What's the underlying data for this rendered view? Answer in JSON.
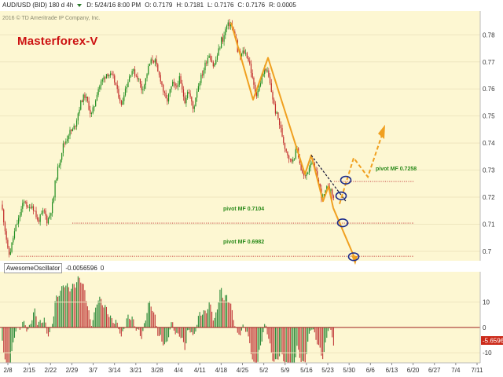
{
  "header": {
    "symbol": "AUD/USD (BID) 180 d 4h",
    "date": "D: 5/24/16 8:00 PM",
    "open": "O: 0.7179",
    "high": "H: 0.7181",
    "low": "L: 0.7176",
    "close": "C: 0.7176",
    "range": "R: 0.0005"
  },
  "copyright": "2016 © TD Ameritrade IP Company, Inc.",
  "brand": "Masterforex-V",
  "oscillator": {
    "name": "AwesomeOscillator",
    "value": "-0.0056596",
    "zero": "0"
  },
  "chart_data": {
    "type": "candlestick",
    "price_axis": {
      "range": [
        0.6965,
        0.7888
      ],
      "ticks": [
        0.78,
        0.77,
        0.76,
        0.75,
        0.74,
        0.73,
        0.72,
        0.71,
        0.7
      ],
      "tick_labels": [
        "0.78",
        "0.77",
        "0.76",
        "0.75",
        "0.74",
        "0.73",
        "0.72",
        "0.71",
        "0.7"
      ]
    },
    "x_axis": {
      "tick_labels": [
        "2/8",
        "2/15",
        "2/22",
        "2/29",
        "3/7",
        "3/14",
        "3/21",
        "3/28",
        "4/4",
        "4/11",
        "4/18",
        "4/25",
        "5/2",
        "5/9",
        "5/16",
        "5/23",
        "5/30",
        "6/6",
        "6/13",
        "6/20",
        "6/27",
        "7/4",
        "7/11"
      ]
    },
    "price_path": [
      [
        0,
        0.7215
      ],
      [
        4,
        0.713
      ],
      [
        8,
        0.705
      ],
      [
        10,
        0.7
      ],
      [
        12,
        0.6985
      ],
      [
        16,
        0.704
      ],
      [
        20,
        0.709
      ],
      [
        24,
        0.712
      ],
      [
        28,
        0.7165
      ],
      [
        32,
        0.719
      ],
      [
        36,
        0.715
      ],
      [
        40,
        0.7175
      ],
      [
        44,
        0.715
      ],
      [
        48,
        0.711
      ],
      [
        52,
        0.713
      ],
      [
        56,
        0.715
      ],
      [
        60,
        0.711
      ],
      [
        64,
        0.714
      ],
      [
        68,
        0.719
      ],
      [
        70,
        0.725
      ],
      [
        74,
        0.731
      ],
      [
        78,
        0.736
      ],
      [
        80,
        0.739
      ],
      [
        84,
        0.741
      ],
      [
        88,
        0.744
      ],
      [
        92,
        0.7445
      ],
      [
        96,
        0.747
      ],
      [
        100,
        0.752
      ],
      [
        104,
        0.756
      ],
      [
        108,
        0.7575
      ],
      [
        112,
        0.7545
      ],
      [
        116,
        0.75
      ],
      [
        120,
        0.754
      ],
      [
        124,
        0.7595
      ],
      [
        128,
        0.762
      ],
      [
        132,
        0.764
      ],
      [
        136,
        0.766
      ],
      [
        140,
        0.765
      ],
      [
        144,
        0.764
      ],
      [
        148,
        0.761
      ],
      [
        150,
        0.7575
      ],
      [
        152,
        0.758
      ],
      [
        154,
        0.753
      ],
      [
        158,
        0.759
      ],
      [
        162,
        0.762
      ],
      [
        166,
        0.766
      ],
      [
        168,
        0.767
      ],
      [
        172,
        0.7655
      ],
      [
        176,
        0.764
      ],
      [
        180,
        0.76
      ],
      [
        184,
        0.762
      ],
      [
        188,
        0.767
      ],
      [
        190,
        0.769
      ],
      [
        194,
        0.771
      ],
      [
        198,
        0.77
      ],
      [
        200,
        0.7665
      ],
      [
        204,
        0.764
      ],
      [
        208,
        0.759
      ],
      [
        212,
        0.755
      ],
      [
        216,
        0.759
      ],
      [
        220,
        0.762
      ],
      [
        224,
        0.76
      ],
      [
        228,
        0.764
      ],
      [
        232,
        0.759
      ],
      [
        236,
        0.755
      ],
      [
        238,
        0.76
      ],
      [
        242,
        0.757
      ],
      [
        246,
        0.752
      ],
      [
        250,
        0.759
      ],
      [
        254,
        0.763
      ],
      [
        258,
        0.766
      ],
      [
        262,
        0.77
      ],
      [
        266,
        0.773
      ],
      [
        270,
        0.77
      ],
      [
        272,
        0.768
      ],
      [
        276,
        0.772
      ],
      [
        280,
        0.776
      ],
      [
        282,
        0.779
      ],
      [
        284,
        0.778
      ],
      [
        286,
        0.781
      ],
      [
        288,
        0.783
      ],
      [
        292,
        0.784
      ],
      [
        294,
        0.784
      ],
      [
        296,
        0.7815
      ],
      [
        300,
        0.779
      ],
      [
        302,
        0.774
      ],
      [
        306,
        0.772
      ],
      [
        310,
        0.774
      ],
      [
        314,
        0.7725
      ],
      [
        318,
        0.769
      ],
      [
        322,
        0.762
      ],
      [
        326,
        0.758
      ],
      [
        330,
        0.761
      ],
      [
        334,
        0.765
      ],
      [
        338,
        0.768
      ],
      [
        342,
        0.764
      ],
      [
        346,
        0.758
      ],
      [
        350,
        0.752
      ],
      [
        354,
        0.749
      ],
      [
        358,
        0.744
      ],
      [
        362,
        0.739
      ],
      [
        366,
        0.736
      ],
      [
        370,
        0.733
      ],
      [
        374,
        0.735
      ],
      [
        378,
        0.738
      ],
      [
        380,
        0.735
      ],
      [
        384,
        0.729
      ],
      [
        388,
        0.727
      ],
      [
        392,
        0.73
      ],
      [
        396,
        0.734
      ],
      [
        400,
        0.73
      ],
      [
        404,
        0.727
      ],
      [
        406,
        0.724
      ],
      [
        410,
        0.7195
      ],
      [
        414,
        0.7215
      ],
      [
        418,
        0.725
      ],
      [
        420,
        0.7225
      ],
      [
        424,
        0.72
      ],
      [
        426,
        0.7176
      ]
    ],
    "annotations": [
      {
        "text": "pivot MF 0.7258",
        "price": 0.7258
      },
      {
        "text": "pivot MF 0.7104",
        "price": 0.7104
      },
      {
        "text": "pivot MF 0.6982",
        "price": 0.6982
      }
    ],
    "ao_axis": {
      "range": [
        -14,
        22
      ],
      "ticks": [
        10,
        0,
        -10
      ],
      "tick_labels": [
        "10",
        "0",
        "-10"
      ]
    },
    "ao_current": "-5.6596",
    "colors": {
      "background": "#fdf7d2",
      "up": "#1e8c1e",
      "down": "#c02828",
      "wave": "#f0a020",
      "pivot_line": "#c03030",
      "pivot_text": "#2a8a1a",
      "circle": "#1a2a8a",
      "ao_up": "#2e8b3a",
      "ao_down": "#c13a3a",
      "zero_line": "#a02020",
      "value_tag": "#cc2a1a"
    }
  }
}
